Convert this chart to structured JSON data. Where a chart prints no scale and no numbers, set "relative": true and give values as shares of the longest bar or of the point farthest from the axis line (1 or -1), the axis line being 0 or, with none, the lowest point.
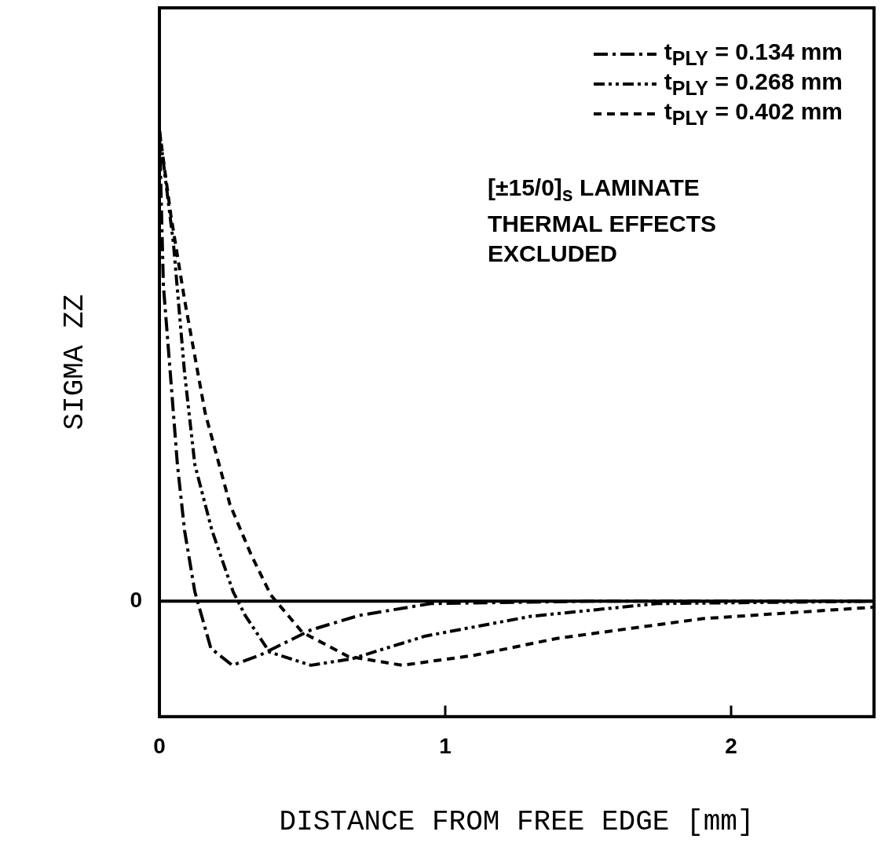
{
  "chart_data": {
    "type": "line",
    "relative": true,
    "xlabel": "DISTANCE FROM FREE EDGE [mm]",
    "ylabel": "SIGMA ZZ",
    "xlim": [
      0,
      2.5
    ],
    "xticks": [
      0,
      1,
      2
    ],
    "grid": false,
    "legend": "top right",
    "marker": "none",
    "line_style": "dashed",
    "ref_lines": [
      {
        "axis": "y",
        "value": 0,
        "label": "0",
        "color": "#000000",
        "line_style": "solid"
      }
    ],
    "annotations": [
      "[±15/0]$_{s}$ LAMINATE",
      "THERMAL EFFECTS",
      "EXCLUDED"
    ],
    "series": [
      {
        "name": "t$_{PLY}$ = 0.134 mm",
        "color": "#000000",
        "x": [
          0,
          0.014,
          0.038,
          0.063,
          0.088,
          0.124,
          0.18,
          0.255,
          0.35,
          0.53,
          0.7,
          0.95,
          1.5,
          2.5
        ],
        "values": [
          1,
          0.67,
          0.485,
          0.29,
          0.15,
          0.02,
          -0.1,
          -0.136,
          -0.115,
          -0.061,
          -0.03,
          -0.005,
          0,
          0
        ]
      },
      {
        "name": "t$_{PLY}$ = 0.268 mm",
        "color": "#000000",
        "x": [
          0,
          0.049,
          0.088,
          0.124,
          0.184,
          0.258,
          0.3,
          0.385,
          0.53,
          0.675,
          0.93,
          1.3,
          1.74,
          2.5
        ],
        "values": [
          1,
          0.76,
          0.485,
          0.29,
          0.15,
          0.02,
          -0.03,
          -0.108,
          -0.136,
          -0.122,
          -0.074,
          -0.032,
          -0.005,
          0
        ]
      },
      {
        "name": "t$_{PLY}$ = 0.402 mm",
        "color": "#000000",
        "x": [
          0,
          0.04,
          0.088,
          0.16,
          0.247,
          0.32,
          0.39,
          0.5,
          0.66,
          0.85,
          1.1,
          1.39,
          1.9,
          2.49,
          2.5
        ],
        "values": [
          1,
          0.82,
          0.64,
          0.4,
          0.205,
          0.1,
          0.013,
          -0.066,
          -0.117,
          -0.136,
          -0.115,
          -0.079,
          -0.037,
          -0.013,
          -0.013
        ]
      }
    ]
  }
}
